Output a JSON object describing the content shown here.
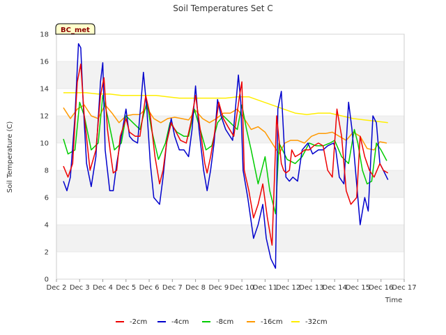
{
  "chart_data": {
    "type": "line",
    "title": "Soil Temperatures Set C",
    "xlabel": "Time",
    "ylabel": "Soil Temperature (C)",
    "site_label": "BC_met",
    "xlim": [
      2,
      17
    ],
    "ylim": [
      0,
      18
    ],
    "x_ticks": [
      2,
      3,
      4,
      5,
      6,
      7,
      8,
      9,
      10,
      11,
      12,
      13,
      14,
      15,
      16,
      17
    ],
    "x_tick_labels": [
      "Dec 2",
      "Dec 3",
      "Dec 4",
      "Dec 5",
      "Dec 6",
      "Dec 7",
      "Dec 8",
      "Dec 9",
      "Dec 10",
      "Dec 11",
      "Dec 12",
      "Dec 13",
      "Dec 14",
      "Dec 15",
      "Dec 16",
      "Dec 17"
    ],
    "y_ticks": [
      0,
      2,
      4,
      6,
      8,
      10,
      12,
      14,
      16,
      18
    ],
    "y_tick_labels": [
      "0",
      "2",
      "4",
      "6",
      "8",
      "10",
      "12",
      "14",
      "16",
      "18"
    ],
    "bands": [
      [
        2,
        4
      ],
      [
        6,
        8
      ],
      [
        10,
        12
      ],
      [
        14,
        16
      ]
    ],
    "legend_position": "bottom",
    "series": [
      {
        "name": "-2cm",
        "color": "#ee0000",
        "x": [
          2.3,
          2.5,
          2.7,
          2.9,
          3.05,
          3.2,
          3.45,
          3.7,
          3.9,
          4.05,
          4.2,
          4.35,
          4.45,
          4.6,
          4.75,
          5.0,
          5.15,
          5.4,
          5.6,
          5.85,
          6.05,
          6.25,
          6.45,
          6.6,
          6.75,
          6.95,
          7.1,
          7.35,
          7.6,
          7.8,
          8.0,
          8.2,
          8.4,
          8.5,
          8.65,
          8.8,
          9.0,
          9.2,
          9.4,
          9.65,
          9.9,
          10.0,
          10.1,
          10.3,
          10.5,
          10.7,
          10.9,
          11.1,
          11.3,
          11.5,
          11.7,
          11.8,
          11.9,
          12.05,
          12.15,
          12.3,
          12.5,
          12.7,
          12.9,
          13.1,
          13.3,
          13.5,
          13.7,
          13.9,
          14.1,
          14.3,
          14.5,
          14.7,
          14.95,
          15.1,
          15.3,
          15.5,
          15.7,
          15.95,
          16.1,
          16.3
        ],
        "y": [
          8.3,
          7.5,
          8.5,
          14.5,
          15.8,
          12.0,
          8.0,
          9.5,
          13.5,
          14.8,
          11.0,
          9.0,
          7.8,
          8.0,
          10.5,
          11.8,
          10.8,
          10.5,
          10.5,
          13.5,
          12.0,
          9.0,
          7.0,
          8.0,
          10.0,
          11.5,
          11.0,
          10.2,
          10.0,
          11.5,
          13.5,
          11.0,
          8.5,
          7.8,
          9.0,
          10.5,
          13.0,
          11.8,
          11.2,
          10.5,
          13.5,
          14.5,
          8.0,
          6.5,
          4.5,
          5.5,
          7.0,
          4.5,
          2.5,
          12.0,
          8.5,
          8.0,
          7.8,
          8.0,
          9.5,
          9.0,
          9.2,
          9.5,
          9.5,
          9.8,
          10.0,
          9.8,
          8.0,
          7.5,
          12.5,
          10.5,
          6.5,
          5.5,
          6.0,
          10.5,
          9.0,
          8.0,
          7.5,
          8.5,
          8.0,
          7.8
        ]
      },
      {
        "name": "-4cm",
        "color": "#0000cc",
        "x": [
          2.3,
          2.45,
          2.6,
          2.8,
          2.95,
          3.05,
          3.15,
          3.3,
          3.5,
          3.7,
          3.9,
          4.0,
          4.1,
          4.3,
          4.45,
          4.6,
          4.8,
          5.0,
          5.15,
          5.3,
          5.5,
          5.75,
          5.9,
          6.05,
          6.2,
          6.45,
          6.6,
          6.75,
          6.95,
          7.1,
          7.3,
          7.5,
          7.7,
          7.85,
          8.0,
          8.15,
          8.35,
          8.5,
          8.65,
          8.8,
          8.95,
          9.1,
          9.3,
          9.6,
          9.85,
          9.95,
          10.05,
          10.25,
          10.5,
          10.7,
          10.9,
          11.05,
          11.25,
          11.45,
          11.55,
          11.7,
          11.9,
          12.05,
          12.2,
          12.4,
          12.6,
          12.85,
          13.05,
          13.3,
          13.5,
          13.7,
          13.95,
          14.05,
          14.2,
          14.4,
          14.6,
          14.75,
          14.95,
          15.1,
          15.3,
          15.45,
          15.65,
          15.8,
          15.95,
          16.1,
          16.3
        ],
        "y": [
          7.2,
          6.5,
          7.5,
          12.0,
          17.3,
          17.0,
          13.0,
          8.5,
          6.8,
          9.0,
          14.5,
          15.9,
          9.5,
          6.5,
          6.5,
          8.5,
          10.5,
          12.5,
          10.5,
          10.2,
          10.0,
          15.2,
          12.5,
          8.5,
          6.0,
          5.5,
          7.5,
          10.0,
          11.8,
          10.5,
          9.5,
          9.5,
          9.0,
          11.0,
          14.2,
          11.0,
          8.0,
          6.5,
          8.0,
          10.0,
          13.2,
          12.0,
          11.0,
          10.2,
          15.0,
          13.0,
          8.0,
          6.0,
          3.0,
          4.0,
          5.5,
          3.0,
          1.5,
          0.8,
          12.5,
          13.8,
          7.5,
          7.2,
          7.5,
          7.2,
          9.5,
          10.0,
          9.2,
          9.5,
          9.5,
          9.8,
          10.0,
          9.5,
          7.5,
          7.0,
          13.0,
          11.0,
          7.0,
          4.0,
          6.0,
          5.0,
          12.0,
          11.5,
          8.5,
          8.0,
          7.3
        ]
      },
      {
        "name": "-8cm",
        "color": "#00cc00",
        "x": [
          2.3,
          2.5,
          2.8,
          3.0,
          3.2,
          3.5,
          3.8,
          4.0,
          4.2,
          4.5,
          4.8,
          5.0,
          5.3,
          5.6,
          5.9,
          6.1,
          6.4,
          6.7,
          6.9,
          7.2,
          7.5,
          7.7,
          7.95,
          8.2,
          8.45,
          8.7,
          8.95,
          9.2,
          9.5,
          9.8,
          10.0,
          10.2,
          10.4,
          10.7,
          11.0,
          11.2,
          11.45,
          11.6,
          11.75,
          11.95,
          12.3,
          12.6,
          12.9,
          13.2,
          13.5,
          13.8,
          14.0,
          14.3,
          14.6,
          14.85,
          15.0,
          15.2,
          15.4,
          15.6,
          15.8,
          16.0,
          16.25
        ],
        "y": [
          10.3,
          9.2,
          9.5,
          13.0,
          12.0,
          9.5,
          10.0,
          13.5,
          12.0,
          9.5,
          10.0,
          12.0,
          11.5,
          11.0,
          13.0,
          11.0,
          8.8,
          10.0,
          11.5,
          10.8,
          10.5,
          10.5,
          12.5,
          11.0,
          9.5,
          9.8,
          11.5,
          12.0,
          11.5,
          11.0,
          12.8,
          11.0,
          9.5,
          7.0,
          9.0,
          6.5,
          4.8,
          10.0,
          9.5,
          8.8,
          8.5,
          9.0,
          10.0,
          9.8,
          9.8,
          10.0,
          10.2,
          9.0,
          8.5,
          11.0,
          10.0,
          8.0,
          7.0,
          7.2,
          10.0,
          9.5,
          8.7
        ]
      },
      {
        "name": "-16cm",
        "color": "#ff9900",
        "x": [
          2.3,
          2.6,
          2.9,
          3.2,
          3.5,
          3.8,
          4.1,
          4.4,
          4.7,
          5.0,
          5.3,
          5.6,
          5.9,
          6.2,
          6.5,
          6.8,
          7.1,
          7.4,
          7.7,
          8.0,
          8.3,
          8.6,
          8.9,
          9.2,
          9.5,
          9.8,
          10.1,
          10.4,
          10.7,
          11.0,
          11.3,
          11.6,
          11.85,
          12.1,
          12.4,
          12.7,
          13.0,
          13.3,
          13.6,
          13.9,
          14.2,
          14.5,
          14.8,
          15.1,
          15.4,
          15.7,
          15.95,
          16.25
        ],
        "y": [
          12.6,
          11.8,
          12.5,
          12.8,
          12.0,
          11.8,
          12.8,
          12.2,
          11.5,
          12.0,
          12.1,
          12.1,
          12.6,
          11.8,
          11.5,
          11.8,
          11.9,
          11.8,
          11.7,
          12.4,
          11.8,
          11.5,
          11.8,
          12.2,
          12.2,
          12.5,
          11.8,
          11.0,
          11.2,
          10.8,
          10.0,
          9.2,
          10.0,
          10.2,
          10.2,
          10.0,
          10.5,
          10.7,
          10.7,
          10.8,
          10.5,
          10.2,
          10.8,
          10.5,
          9.6,
          9.5,
          10.1,
          10.0
        ]
      },
      {
        "name": "-32cm",
        "color": "#ffee00",
        "x": [
          2.3,
          2.8,
          3.3,
          3.8,
          4.3,
          4.8,
          5.3,
          5.8,
          6.3,
          6.8,
          7.3,
          7.8,
          8.3,
          8.8,
          9.3,
          9.8,
          10.3,
          10.8,
          11.3,
          11.8,
          12.3,
          12.8,
          13.3,
          13.8,
          14.3,
          14.8,
          15.3,
          15.8,
          16.3
        ],
        "y": [
          13.7,
          13.7,
          13.7,
          13.6,
          13.6,
          13.5,
          13.5,
          13.5,
          13.5,
          13.4,
          13.3,
          13.3,
          13.3,
          13.3,
          13.3,
          13.4,
          13.4,
          13.1,
          12.8,
          12.5,
          12.2,
          12.1,
          12.2,
          12.2,
          12.0,
          11.8,
          11.7,
          11.6,
          11.5
        ]
      }
    ]
  }
}
